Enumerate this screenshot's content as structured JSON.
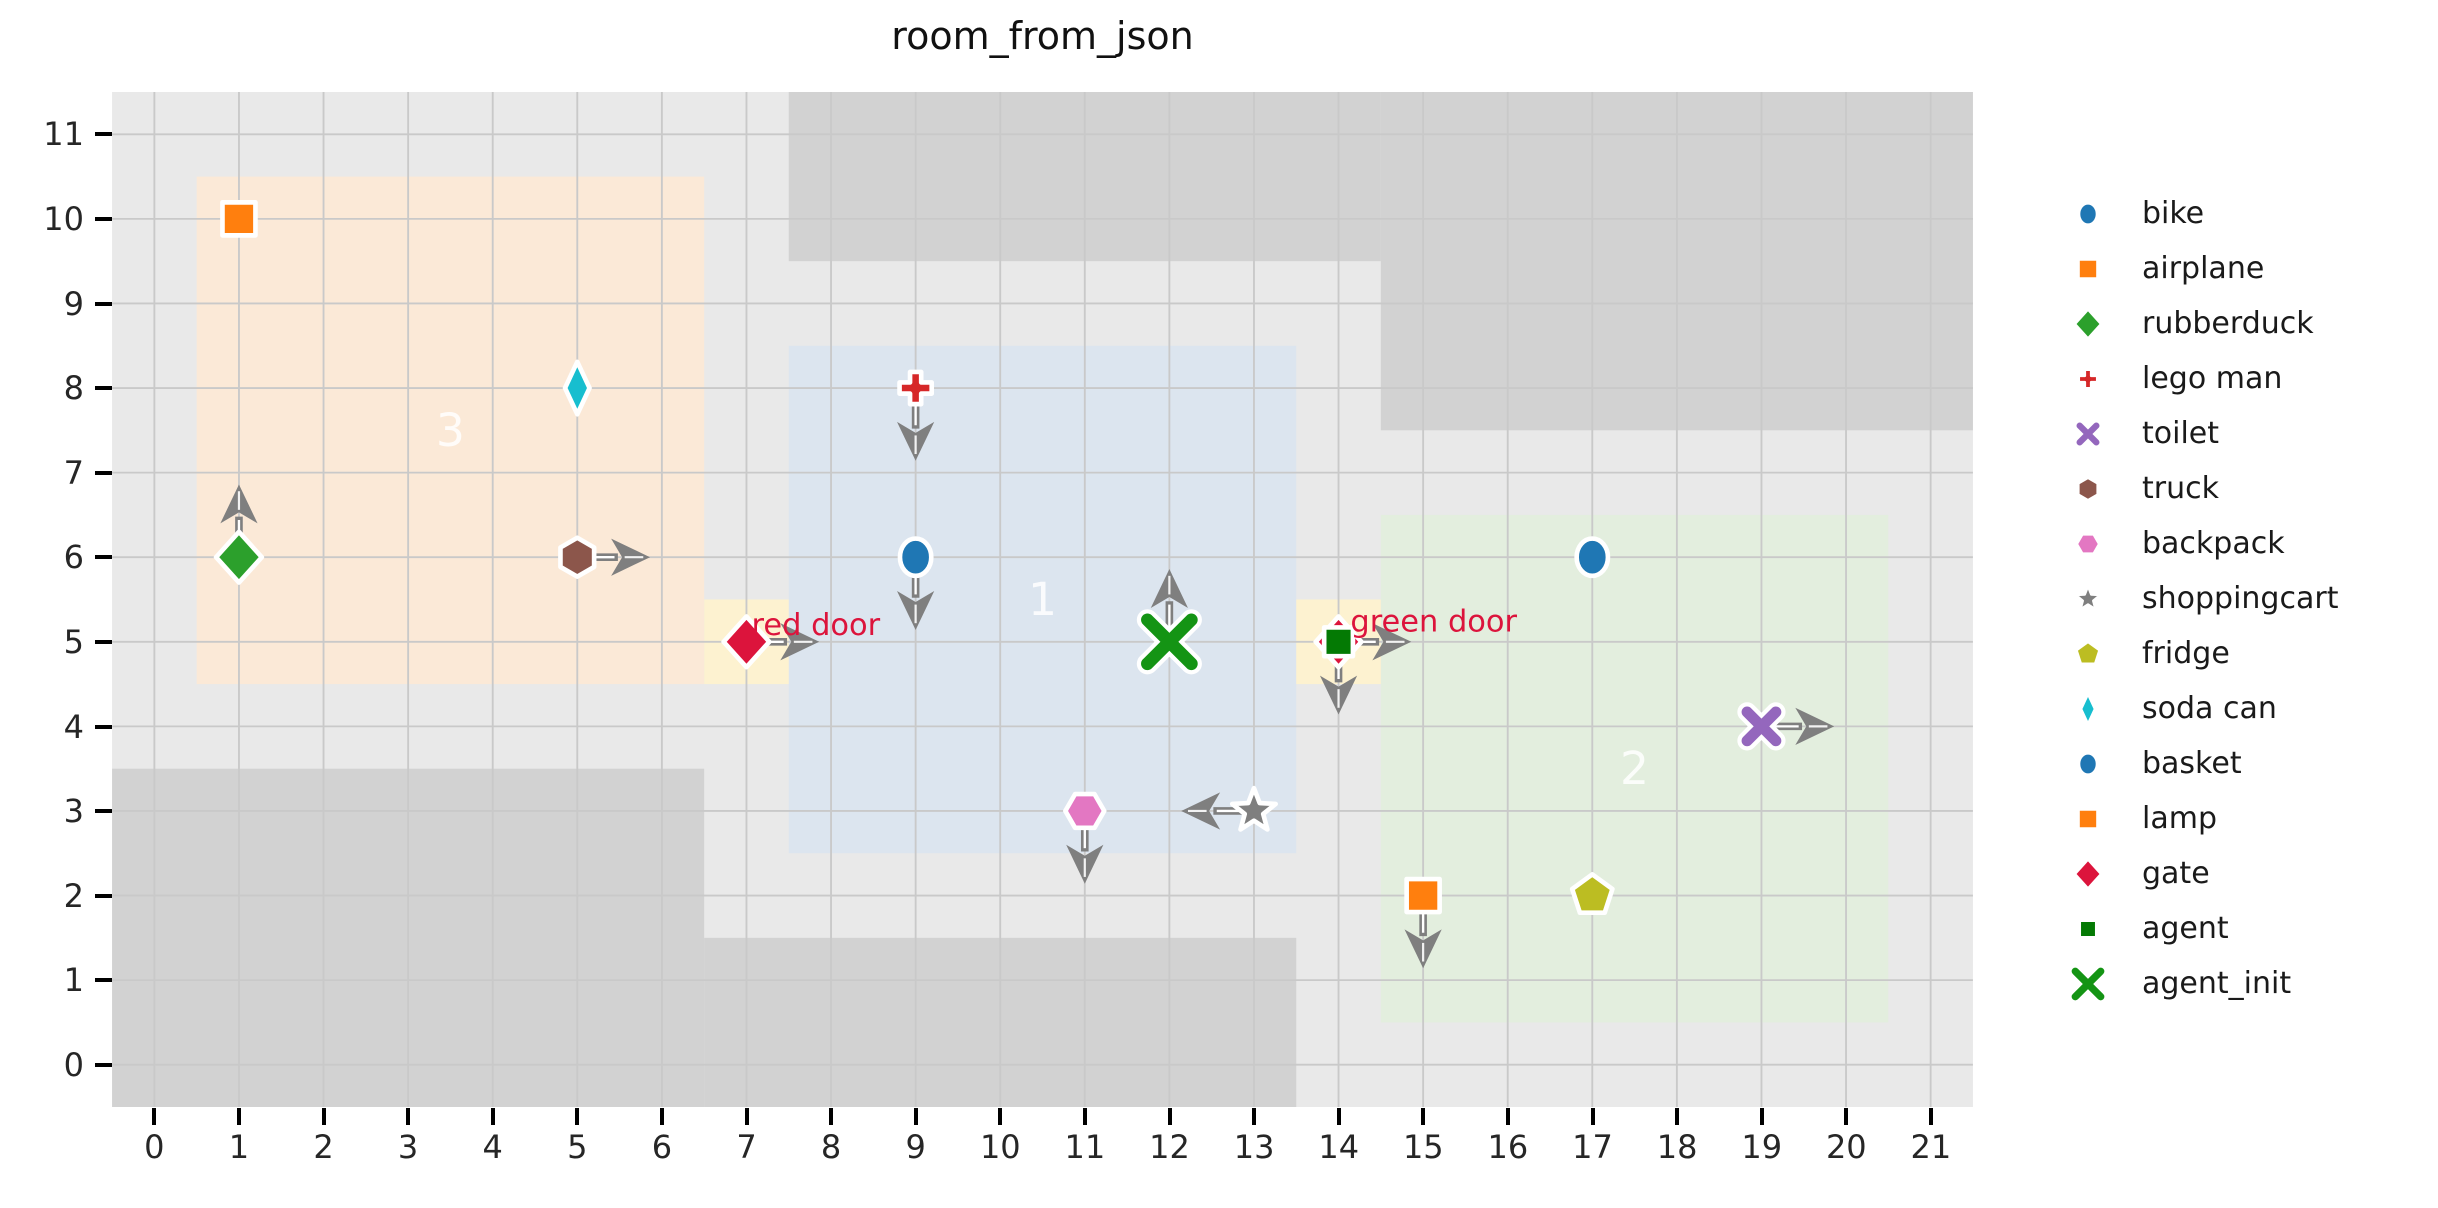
{
  "title": "room_from_json",
  "chart_data": {
    "type": "scatter",
    "title": "room_from_json",
    "xlabel": "",
    "ylabel": "",
    "xlim": [
      -0.5,
      21.5
    ],
    "ylim": [
      -0.5,
      11.5
    ],
    "x_ticks": [
      0,
      1,
      2,
      3,
      4,
      5,
      6,
      7,
      8,
      9,
      10,
      11,
      12,
      13,
      14,
      15,
      16,
      17,
      18,
      19,
      20,
      21
    ],
    "y_ticks": [
      0,
      1,
      2,
      3,
      4,
      5,
      6,
      7,
      8,
      9,
      10,
      11
    ],
    "grid": "on",
    "background_color": "#e9e9e9",
    "wall_color": "#d2d2d2",
    "grid_color": "#c9c9c9",
    "arrow_color": "#7f7f7f",
    "door_fill_color": "#fdf2d0",
    "door_label_color": "#dc143c",
    "room_label_color": "#ffffff",
    "walls": [
      {
        "x": 7.5,
        "y": 9.5,
        "w": 7,
        "h": 2
      },
      {
        "x": 14.5,
        "y": 7.5,
        "w": 7,
        "h": 4
      },
      {
        "x": -0.5,
        "y": -0.5,
        "w": 7,
        "h": 4
      },
      {
        "x": 6.5,
        "y": -0.5,
        "w": 7,
        "h": 2
      }
    ],
    "rooms": [
      {
        "label": "3",
        "x": 0.5,
        "y": 4.5,
        "w": 6,
        "h": 6,
        "color": "#fbe9d7",
        "label_x": 3.5,
        "label_y": 7.5
      },
      {
        "label": "1",
        "x": 7.5,
        "y": 2.5,
        "w": 6,
        "h": 6,
        "color": "#dce5ef",
        "label_x": 10.5,
        "label_y": 5.5
      },
      {
        "label": "2",
        "x": 14.5,
        "y": 0.5,
        "w": 6,
        "h": 6,
        "color": "#e3eede",
        "label_x": 17.5,
        "label_y": 3.5
      }
    ],
    "doors": [
      {
        "x": 6.5,
        "y": 4.5,
        "w": 1,
        "h": 1,
        "label": "red door",
        "label_x": 7.06,
        "label_y": 5.08
      },
      {
        "x": 13.5,
        "y": 4.5,
        "w": 1,
        "h": 1,
        "label": "green door",
        "label_x": 14.14,
        "label_y": 5.12
      }
    ],
    "objects": [
      {
        "name": "airplane",
        "marker": "square",
        "color": "#ff7f0e",
        "x": 1,
        "y": 10,
        "arrow": null
      },
      {
        "name": "soda can",
        "marker": "thin-diamond",
        "color": "#17becf",
        "x": 5,
        "y": 8,
        "arrow": null
      },
      {
        "name": "rubberduck",
        "marker": "diamond",
        "color": "#2ca02c",
        "x": 1,
        "y": 6,
        "arrow": "up"
      },
      {
        "name": "truck",
        "marker": "hexagon-pointy",
        "color": "#8c564b",
        "x": 5,
        "y": 6,
        "arrow": "right"
      },
      {
        "name": "lego man",
        "marker": "plus",
        "color": "#d62728",
        "x": 9,
        "y": 8,
        "arrow": "down"
      },
      {
        "name": "bike",
        "marker": "circle",
        "color": "#1f77b4",
        "x": 9,
        "y": 6,
        "arrow": "down"
      },
      {
        "name": "gate",
        "marker": "diamond",
        "color": "#dc143c",
        "x": 7,
        "y": 5,
        "arrow": "right"
      },
      {
        "name": "agent_init",
        "marker": "x-thick",
        "color": "#149414",
        "x": 12,
        "y": 5,
        "arrow": "up"
      },
      {
        "name": "backpack",
        "marker": "hexagon-flat",
        "color": "#e377c2",
        "x": 11,
        "y": 3,
        "arrow": "down"
      },
      {
        "name": "shoppingcart",
        "marker": "star",
        "color": "#7f7f7f",
        "x": 13,
        "y": 3,
        "arrow": "left"
      },
      {
        "name": "gate",
        "marker": "diamond",
        "color": "#dc143c",
        "x": 14,
        "y": 5,
        "arrow": "right"
      },
      {
        "name": "agent",
        "marker": "square-small",
        "color": "#047a04",
        "x": 14,
        "y": 5,
        "arrow": "down"
      },
      {
        "name": "lamp",
        "marker": "square",
        "color": "#ff7f0e",
        "x": 15,
        "y": 2,
        "arrow": "down"
      },
      {
        "name": "fridge",
        "marker": "pentagon",
        "color": "#bcbd22",
        "x": 17,
        "y": 2,
        "arrow": null
      },
      {
        "name": "basket",
        "marker": "circle",
        "color": "#1f77b4",
        "x": 17,
        "y": 6,
        "arrow": null
      },
      {
        "name": "toilet",
        "marker": "x",
        "color": "#9467bd",
        "x": 19,
        "y": 4,
        "arrow": "right"
      }
    ]
  },
  "legend": {
    "position": "right",
    "items": [
      {
        "label": "bike",
        "marker": "circle",
        "color": "#1f77b4"
      },
      {
        "label": "airplane",
        "marker": "square",
        "color": "#ff7f0e"
      },
      {
        "label": "rubberduck",
        "marker": "diamond",
        "color": "#2ca02c"
      },
      {
        "label": "lego man",
        "marker": "plus",
        "color": "#d62728"
      },
      {
        "label": "toilet",
        "marker": "x",
        "color": "#9467bd"
      },
      {
        "label": "truck",
        "marker": "hexagon-pointy",
        "color": "#8c564b"
      },
      {
        "label": "backpack",
        "marker": "hexagon-flat",
        "color": "#e377c2"
      },
      {
        "label": "shoppingcart",
        "marker": "star",
        "color": "#7f7f7f"
      },
      {
        "label": "fridge",
        "marker": "pentagon",
        "color": "#bcbd22"
      },
      {
        "label": "soda can",
        "marker": "thin-diamond",
        "color": "#17becf"
      },
      {
        "label": "basket",
        "marker": "circle",
        "color": "#1f77b4"
      },
      {
        "label": "lamp",
        "marker": "square",
        "color": "#ff7f0e"
      },
      {
        "label": "gate",
        "marker": "diamond",
        "color": "#dc143c"
      },
      {
        "label": "agent",
        "marker": "square-small",
        "color": "#047a04"
      },
      {
        "label": "agent_init",
        "marker": "x-thick",
        "color": "#149414"
      }
    ]
  }
}
